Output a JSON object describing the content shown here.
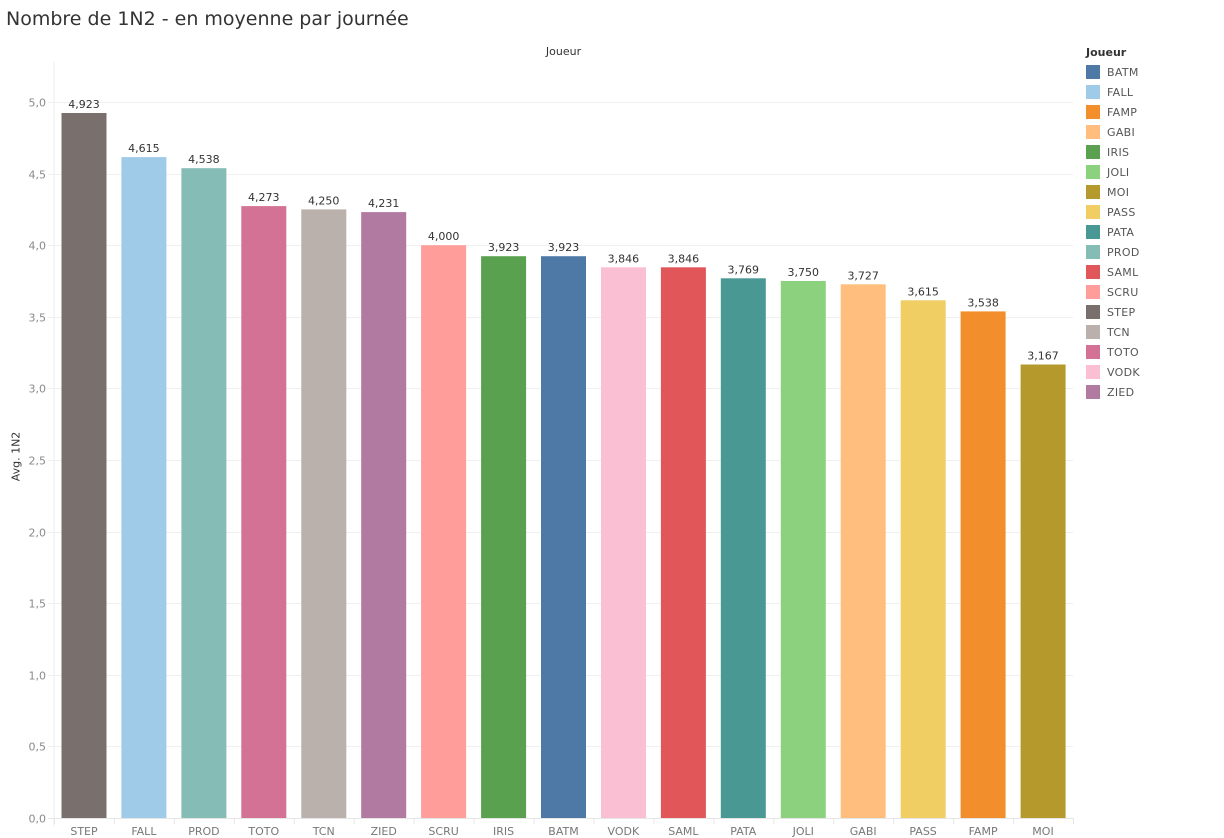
{
  "title": "Nombre de 1N2 - en moyenne par journée",
  "column_header": "Joueur",
  "legend": {
    "title": "Joueur",
    "items": [
      {
        "label": "BATM",
        "color": "#4e79a7"
      },
      {
        "label": "FALL",
        "color": "#a0cbe8"
      },
      {
        "label": "FAMP",
        "color": "#f28e2b"
      },
      {
        "label": "GABI",
        "color": "#ffbe7d"
      },
      {
        "label": "IRIS",
        "color": "#59a14f"
      },
      {
        "label": "JOLI",
        "color": "#8cd17d"
      },
      {
        "label": "MOI",
        "color": "#b6992d"
      },
      {
        "label": "PASS",
        "color": "#f1ce63"
      },
      {
        "label": "PATA",
        "color": "#499894"
      },
      {
        "label": "PROD",
        "color": "#86bcb6"
      },
      {
        "label": "SAML",
        "color": "#e15759"
      },
      {
        "label": "SCRU",
        "color": "#ff9d9a"
      },
      {
        "label": "STEP",
        "color": "#79706e"
      },
      {
        "label": "TCN",
        "color": "#bab0ac"
      },
      {
        "label": "TOTO",
        "color": "#d37295"
      },
      {
        "label": "VODK",
        "color": "#fabfd2"
      },
      {
        "label": "ZIED",
        "color": "#b07aa1"
      }
    ]
  },
  "chart_data": {
    "type": "bar",
    "title": "Nombre de 1N2 - en moyenne par journée",
    "xlabel": "Joueur",
    "ylabel": "Avg. 1N2",
    "ylim": [
      0,
      5.2
    ],
    "yticks": [
      0,
      0.5,
      1,
      1.5,
      2,
      2.5,
      3,
      3.5,
      4,
      4.5,
      5
    ],
    "ytick_labels": [
      "0,0",
      "0,5",
      "1,0",
      "1,5",
      "2,0",
      "2,5",
      "3,0",
      "3,5",
      "4,0",
      "4,5",
      "5,0"
    ],
    "grid": true,
    "legend_position": "right",
    "categories": [
      "STEP",
      "FALL",
      "PROD",
      "TOTO",
      "TCN",
      "ZIED",
      "SCRU",
      "IRIS",
      "BATM",
      "VODK",
      "SAML",
      "PATA",
      "JOLI",
      "GABI",
      "PASS",
      "FAMP",
      "MOI"
    ],
    "values": [
      4.923,
      4.615,
      4.538,
      4.273,
      4.25,
      4.231,
      4.0,
      3.923,
      3.923,
      3.846,
      3.846,
      3.769,
      3.75,
      3.727,
      3.615,
      3.538,
      3.167
    ],
    "value_labels": [
      "4,923",
      "4,615",
      "4,538",
      "4,273",
      "4,250",
      "4,231",
      "4,000",
      "3,923",
      "3,923",
      "3,846",
      "3,846",
      "3,769",
      "3,750",
      "3,727",
      "3,615",
      "3,538",
      "3,167"
    ],
    "colors": [
      "#79706e",
      "#a0cbe8",
      "#86bcb6",
      "#d37295",
      "#bab0ac",
      "#b07aa1",
      "#ff9d9a",
      "#59a14f",
      "#4e79a7",
      "#fabfd2",
      "#e15759",
      "#499894",
      "#8cd17d",
      "#ffbe7d",
      "#f1ce63",
      "#f28e2b",
      "#b6992d"
    ]
  }
}
